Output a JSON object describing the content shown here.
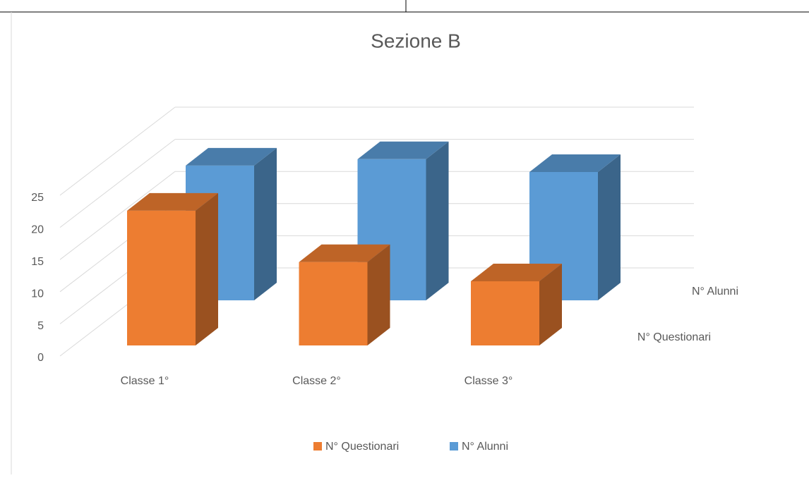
{
  "chart_data": {
    "type": "bar3d",
    "title": "Sezione B",
    "categories": [
      "Classe 1°",
      "Classe 2°",
      "Classe 3°"
    ],
    "series": [
      {
        "name": "N° Questionari",
        "color": "#ED7D31",
        "values": [
          21,
          13,
          10
        ]
      },
      {
        "name": "N° Alunni",
        "color": "#5B9BD5",
        "values": [
          21,
          22,
          20
        ]
      }
    ],
    "ylim": [
      0,
      25
    ],
    "yticks": [
      0,
      5,
      10,
      15,
      20,
      25
    ],
    "grid": true,
    "legend": "bottom"
  }
}
